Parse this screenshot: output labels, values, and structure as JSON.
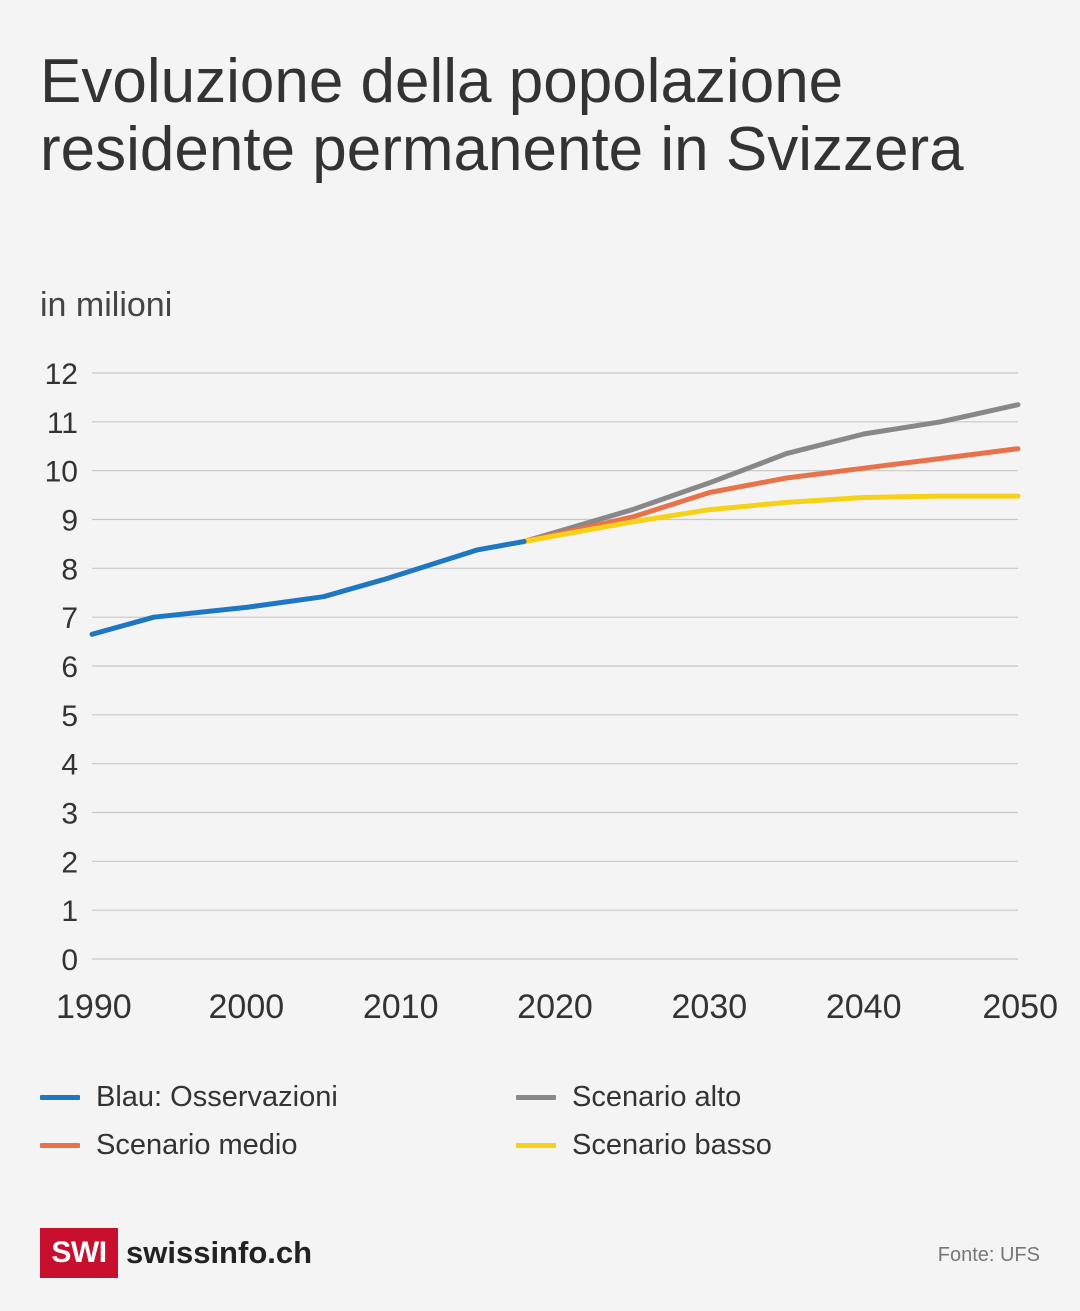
{
  "title": "Evoluzione della popolazione residente permanente in Svizzera",
  "subtitle": "in milioni",
  "colors": {
    "observed": "#1f77c4",
    "high": "#888888",
    "medium": "#e8734a",
    "low": "#f7d117",
    "grid": "#c8c8c8",
    "brand": "#c8102e"
  },
  "chart_data": {
    "type": "line",
    "ylim": [
      0,
      12
    ],
    "xlim": [
      1990,
      2050
    ],
    "yticks": [
      "0",
      "1",
      "2",
      "3",
      "4",
      "5",
      "6",
      "7",
      "8",
      "9",
      "10",
      "11",
      "12"
    ],
    "xticks": [
      "1990",
      "2000",
      "2010",
      "2020",
      "2030",
      "2040",
      "2050"
    ],
    "grid": true,
    "legend_position": "bottom",
    "series": [
      {
        "name": "Blau: Osservazioni",
        "key": "observed",
        "x": [
          1990,
          1994,
          2000,
          2005,
          2009,
          2015,
          2018
        ],
        "y": [
          6.65,
          7.0,
          7.2,
          7.42,
          7.78,
          8.38,
          8.55
        ]
      },
      {
        "name": "Scenario alto",
        "key": "high",
        "x": [
          2018,
          2025,
          2030,
          2035,
          2040,
          2045,
          2050
        ],
        "y": [
          8.55,
          9.2,
          9.75,
          10.35,
          10.75,
          11.0,
          11.35
        ]
      },
      {
        "name": "Scenario medio",
        "key": "medium",
        "x": [
          2018,
          2025,
          2030,
          2035,
          2040,
          2045,
          2050
        ],
        "y": [
          8.55,
          9.05,
          9.55,
          9.85,
          10.05,
          10.25,
          10.45
        ]
      },
      {
        "name": "Scenario basso",
        "key": "low",
        "x": [
          2018,
          2025,
          2030,
          2035,
          2040,
          2045,
          2050
        ],
        "y": [
          8.55,
          8.95,
          9.2,
          9.35,
          9.45,
          9.48,
          9.48
        ]
      }
    ]
  },
  "legend": [
    {
      "label": "Blau: Osservazioni",
      "key": "observed"
    },
    {
      "label": "Scenario alto",
      "key": "high"
    },
    {
      "label": "Scenario medio",
      "key": "medium"
    },
    {
      "label": "Scenario basso",
      "key": "low"
    }
  ],
  "footer": {
    "logo_text": "SWI",
    "site": "swissinfo.ch",
    "source": "Fonte: UFS"
  }
}
